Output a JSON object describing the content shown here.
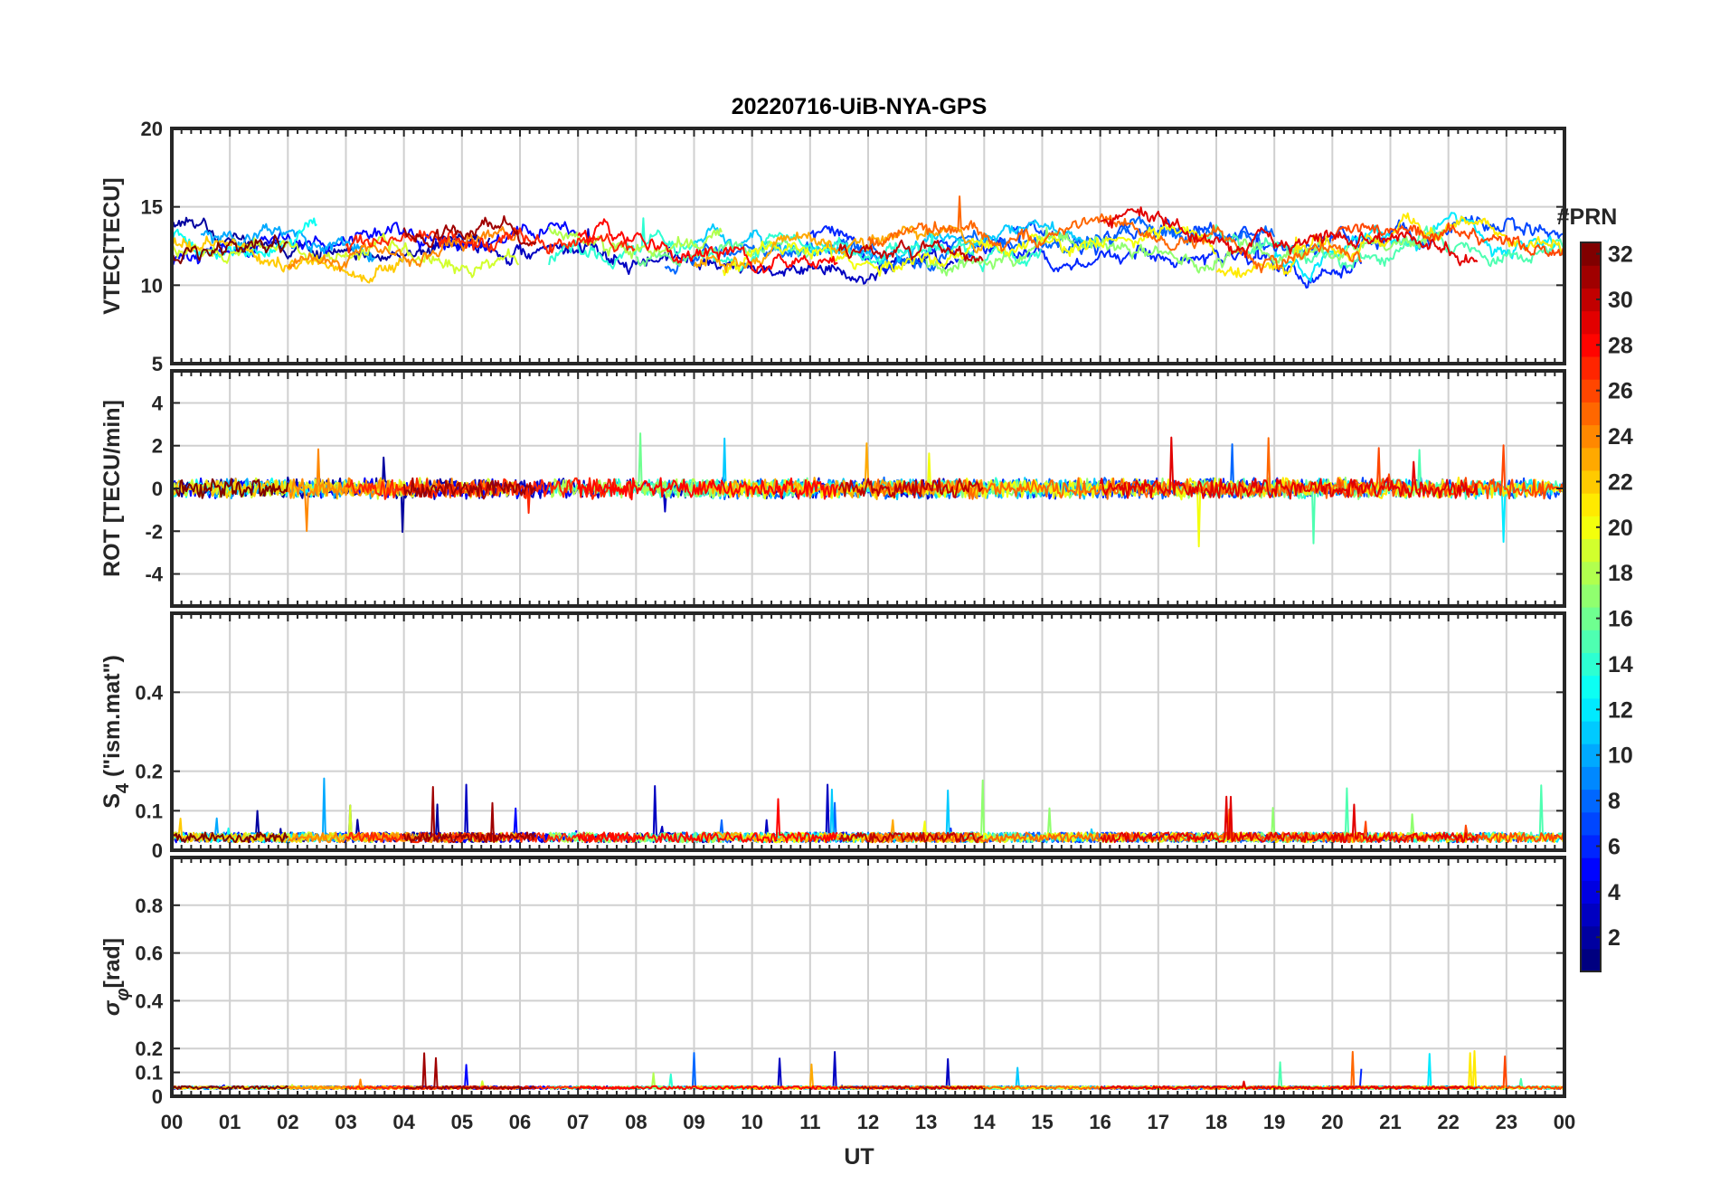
{
  "chart_data": {
    "type": "line",
    "title": "20220716-UiB-NYA-GPS",
    "xlabel": "UT",
    "x_ticks": [
      "00",
      "01",
      "02",
      "03",
      "04",
      "05",
      "06",
      "07",
      "08",
      "09",
      "10",
      "11",
      "12",
      "13",
      "14",
      "15",
      "16",
      "17",
      "18",
      "19",
      "20",
      "21",
      "22",
      "23",
      "00"
    ],
    "xlim": [
      0,
      24
    ],
    "grid": true,
    "colorbar": {
      "label": "#PRN",
      "range": [
        1,
        32
      ],
      "ticks": [
        "2",
        "4",
        "6",
        "8",
        "10",
        "12",
        "14",
        "16",
        "18",
        "20",
        "22",
        "24",
        "26",
        "28",
        "30",
        "32"
      ],
      "colormap": "jet"
    },
    "panels": [
      {
        "ylabel": "VTEC[TECU]",
        "ylim": [
          5,
          20
        ],
        "y_ticks": [
          5,
          10,
          15,
          20
        ],
        "y_tick_labels": [
          "5",
          "10",
          "15",
          "20"
        ],
        "baseline": 12.5,
        "noise": 1.6,
        "spike_prob": 0.002,
        "spike_amp": 3
      },
      {
        "ylabel": "ROT [TECU/min]",
        "ylim": [
          -5.5,
          5.5
        ],
        "y_ticks": [
          -4,
          -2,
          0,
          2,
          4
        ],
        "y_tick_labels": [
          "-4",
          "-2",
          "0",
          "2",
          "4"
        ],
        "baseline": 0,
        "noise": 0.35,
        "spike_prob": 0.004,
        "spike_amp": 3
      },
      {
        "ylabel_main": "S",
        "ylabel_sub": "4",
        "ylabel_rest": " (\"ism.mat\")",
        "ylim": [
          0,
          0.6
        ],
        "y_ticks": [
          0,
          0.1,
          0.2,
          0.4
        ],
        "y_tick_labels": [
          "0",
          "0.1",
          "0.2",
          "0.4"
        ],
        "baseline": 0.02,
        "noise": 0.025,
        "spike_prob": 0.006,
        "spike_amp": 0.15
      },
      {
        "ylabel_main": "σ",
        "ylabel_sub": "φ",
        "ylabel_rest": "[rad]",
        "ylim": [
          0,
          1
        ],
        "y_ticks": [
          0,
          0.1,
          0.2,
          0.4,
          0.6,
          0.8
        ],
        "y_tick_labels": [
          "0",
          "0.1",
          "0.2",
          "0.4",
          "0.6",
          "0.8"
        ],
        "baseline": 0.03,
        "noise": 0.012,
        "spike_prob": 0.003,
        "spike_amp": 0.15
      }
    ],
    "series": [
      {
        "prn": 2,
        "start": 0.0,
        "end": 5.5
      },
      {
        "prn": 3,
        "start": 4.5,
        "end": 13.5
      },
      {
        "prn": 5,
        "start": 0.0,
        "end": 7.0
      },
      {
        "prn": 6,
        "start": 11.0,
        "end": 20.5
      },
      {
        "prn": 7,
        "start": 14.5,
        "end": 24.0
      },
      {
        "prn": 8,
        "start": 8.5,
        "end": 19.0
      },
      {
        "prn": 10,
        "start": 0.5,
        "end": 3.5
      },
      {
        "prn": 11,
        "start": 9.0,
        "end": 16.0
      },
      {
        "prn": 12,
        "start": 19.0,
        "end": 24.0
      },
      {
        "prn": 13,
        "start": 0.0,
        "end": 2.5
      },
      {
        "prn": 14,
        "start": 6.5,
        "end": 15.0
      },
      {
        "prn": 15,
        "start": 17.5,
        "end": 24.0
      },
      {
        "prn": 16,
        "start": 8.0,
        "end": 11.0
      },
      {
        "prn": 17,
        "start": 13.0,
        "end": 22.0
      },
      {
        "prn": 18,
        "start": 6.5,
        "end": 9.5
      },
      {
        "prn": 19,
        "start": 0.0,
        "end": 6.0
      },
      {
        "prn": 20,
        "start": 9.5,
        "end": 18.0
      },
      {
        "prn": 21,
        "start": 18.0,
        "end": 24.0
      },
      {
        "prn": 22,
        "start": 0.0,
        "end": 4.0
      },
      {
        "prn": 23,
        "start": 9.0,
        "end": 14.0
      },
      {
        "prn": 24,
        "start": 2.0,
        "end": 6.0
      },
      {
        "prn": 25,
        "start": 12.0,
        "end": 20.5
      },
      {
        "prn": 26,
        "start": 20.0,
        "end": 24.0
      },
      {
        "prn": 27,
        "start": 3.0,
        "end": 8.0
      },
      {
        "prn": 28,
        "start": 7.0,
        "end": 11.5
      },
      {
        "prn": 29,
        "start": 16.0,
        "end": 22.5
      },
      {
        "prn": 30,
        "start": 11.5,
        "end": 14.0
      },
      {
        "prn": 31,
        "start": 4.0,
        "end": 6.3
      },
      {
        "prn": 32,
        "start": 0.0,
        "end": 2.0
      }
    ]
  }
}
